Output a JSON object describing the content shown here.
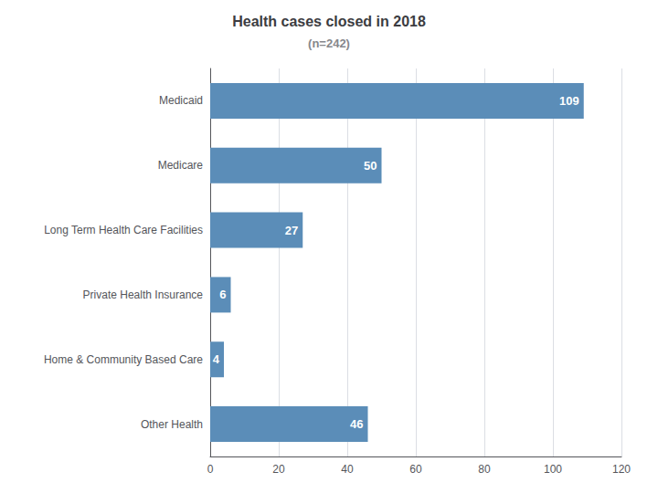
{
  "chart_data": {
    "type": "bar",
    "orientation": "horizontal",
    "title": "Health cases closed in 2018",
    "subtitle": "(n=242)",
    "categories": [
      "Medicaid",
      "Medicare",
      "Long Term Health Care Facilities",
      "Private Health Insurance",
      "Home & Community Based Care",
      "Other Health"
    ],
    "values": [
      109,
      50,
      27,
      6,
      4,
      46
    ],
    "color": "#5b8db8",
    "xlim": [
      0,
      120
    ],
    "xticks": [
      0,
      20,
      40,
      60,
      80,
      100,
      120
    ],
    "grid": true,
    "data_labels": true
  }
}
